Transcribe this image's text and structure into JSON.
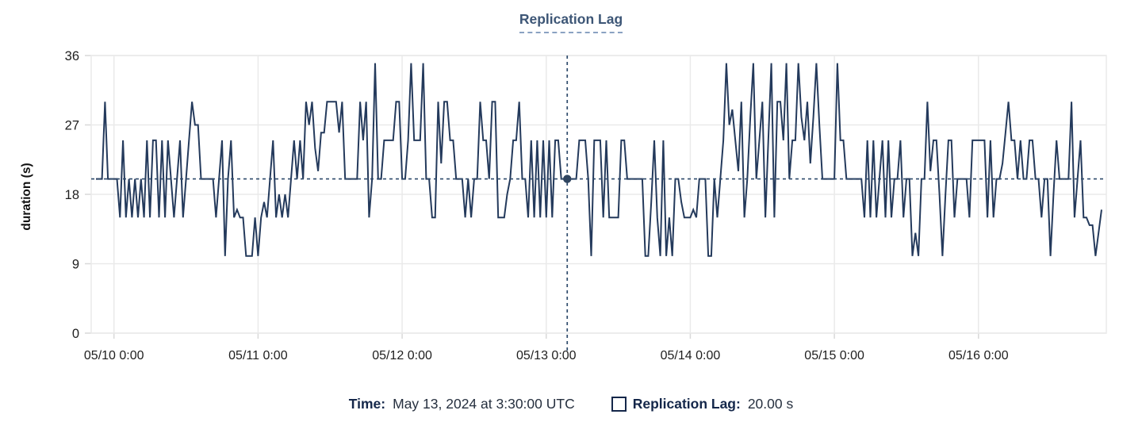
{
  "title": "Replication Lag",
  "tooltip": {
    "time_label": "Time:",
    "time_value": "May 13, 2024 at 3:30:00 UTC",
    "series_label": "Replication Lag:",
    "series_value": "20.00 s"
  },
  "colors": {
    "line": "#243a5c",
    "crosshair": "#2e4a6b",
    "dot": "#2f4560",
    "grid": "#eaeaea",
    "tick": "#d9d9d9",
    "axis_text": "#1e1e1e",
    "navy_text": "#14274a",
    "title_text": "#3d5676"
  },
  "chart_data": {
    "type": "line",
    "title": "Replication Lag",
    "xlabel": "",
    "ylabel": "duration (s)",
    "ylim": [
      0,
      36
    ],
    "y_ticks": [
      0,
      9,
      18,
      27,
      36
    ],
    "x_tick_labels": [
      "05/10 0:00",
      "05/11 0:00",
      "05/12 0:00",
      "05/13 0:00",
      "05/14 0:00",
      "05/15 0:00",
      "05/16 0:00"
    ],
    "samples_per_day": 48,
    "first_tick_sample_index": 6,
    "grid": true,
    "legend_position": "bottom",
    "highlight": {
      "index": 157,
      "value": 20,
      "time": "May 13, 2024 at 3:30:00 UTC",
      "display_value": "20.00 s"
    },
    "series": [
      {
        "name": "Replication Lag",
        "unit": "s",
        "values": [
          20,
          20,
          20,
          30,
          20,
          20,
          20,
          20,
          15,
          25,
          15,
          20,
          15,
          20,
          15,
          20,
          15,
          25,
          15,
          25,
          25,
          15,
          25,
          15,
          25,
          20,
          15,
          20,
          25,
          15,
          20,
          25,
          30,
          27,
          27,
          20,
          20,
          20,
          20,
          20,
          15,
          20,
          25,
          10,
          20,
          25,
          15,
          16,
          15,
          15,
          10,
          10,
          10,
          15,
          10,
          15,
          17,
          15,
          20,
          25,
          15,
          18,
          15,
          18,
          15,
          20,
          25,
          20,
          25,
          20,
          30,
          27,
          30,
          24,
          21,
          26,
          26,
          30,
          30,
          30,
          30,
          26,
          30,
          20,
          20,
          20,
          20,
          20,
          30,
          25,
          30,
          15,
          20,
          35,
          20,
          20,
          25,
          25,
          25,
          25,
          30,
          30,
          20,
          20,
          25,
          35,
          25,
          25,
          25,
          35,
          20,
          20,
          15,
          15,
          30,
          22,
          30,
          30,
          25,
          25,
          20,
          20,
          20,
          15,
          20,
          15,
          20,
          20,
          30,
          25,
          25,
          20,
          30,
          30,
          15,
          15,
          15,
          18,
          20,
          25,
          25,
          30,
          20,
          20,
          15,
          25,
          15,
          25,
          15,
          25,
          15,
          25,
          15,
          25,
          25,
          20,
          20,
          20,
          20,
          20,
          20,
          25,
          25,
          25,
          20,
          10,
          25,
          25,
          25,
          15,
          25,
          15,
          15,
          15,
          15,
          25,
          25,
          20,
          20,
          20,
          20,
          20,
          20,
          10,
          10,
          17,
          25,
          15,
          10,
          25,
          10,
          15,
          10,
          20,
          20,
          17,
          15,
          15,
          15,
          16,
          15,
          20,
          20,
          20,
          10,
          10,
          20,
          15,
          20,
          25,
          35,
          27,
          29,
          25,
          21,
          30,
          15,
          20,
          28,
          35,
          20,
          25,
          30,
          15,
          25,
          35,
          15,
          30,
          30,
          25,
          35,
          20,
          25,
          25,
          35,
          28,
          25,
          30,
          22,
          28,
          35,
          27,
          20,
          20,
          20,
          20,
          20,
          35,
          25,
          25,
          20,
          20,
          20,
          20,
          20,
          20,
          15,
          25,
          15,
          25,
          15,
          20,
          25,
          15,
          25,
          15,
          20,
          20,
          25,
          15,
          20,
          20,
          10,
          13,
          10,
          20,
          20,
          30,
          21,
          25,
          25,
          18,
          10,
          18,
          25,
          25,
          15,
          20,
          20,
          20,
          20,
          15,
          25,
          25,
          25,
          25,
          25,
          15,
          25,
          15,
          20,
          20,
          22,
          26,
          30,
          25,
          25,
          20,
          25,
          20,
          20,
          25,
          25,
          20,
          20,
          15,
          20,
          20,
          10,
          18,
          25,
          20,
          20,
          20,
          20,
          30,
          15,
          20,
          25,
          15,
          15,
          14,
          14,
          10,
          13,
          16
        ]
      }
    ]
  }
}
